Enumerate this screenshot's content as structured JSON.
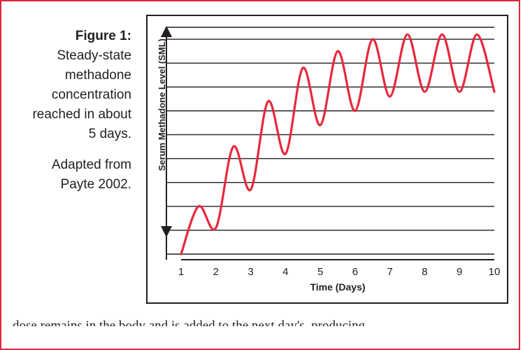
{
  "caption": {
    "label": "Figure 1:",
    "text_lines": [
      "Steady-state",
      "methadone",
      "concentration",
      "reached in about",
      "5 days."
    ],
    "source_lines": [
      "Adapted from",
      "Payte 2002."
    ]
  },
  "chart_data": {
    "type": "line",
    "title": "",
    "xlabel": "Time (Days)",
    "ylabel": "Serum Methadone Level (SML)",
    "xlim": [
      1,
      10
    ],
    "ylim": [
      0,
      9.5
    ],
    "x_ticks": [
      1,
      2,
      3,
      4,
      5,
      6,
      7,
      8,
      9,
      10
    ],
    "y_tick_labels_shown": false,
    "grid": "horizontal",
    "color": "#e8283c",
    "series": [
      {
        "name": "",
        "x": [
          1,
          1.5,
          2,
          2.5,
          3,
          3.5,
          4,
          4.5,
          5,
          5.5,
          6,
          6.5,
          7,
          7.5,
          8,
          8.5,
          9,
          9.5,
          10
        ],
        "values": [
          0,
          2.0,
          1.1,
          4.5,
          2.7,
          6.4,
          4.2,
          7.8,
          5.4,
          8.5,
          6.0,
          9.0,
          6.6,
          9.2,
          6.8,
          9.2,
          6.8,
          9.2,
          6.8
        ]
      }
    ]
  },
  "bottom_text": "dose remains in the body and is added to the next day's, producing"
}
